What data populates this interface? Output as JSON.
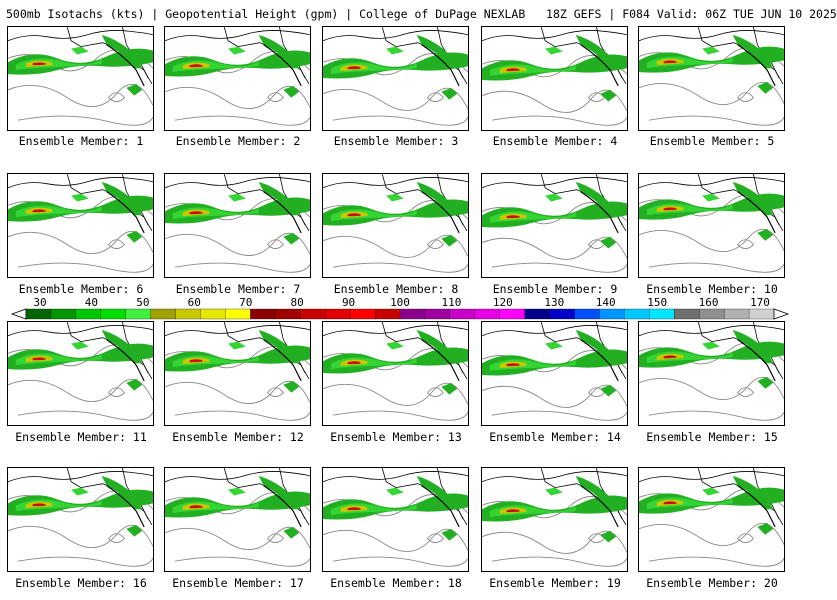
{
  "title": "500mb Isotachs (kts) | Geopotential Height (gpm) | College of DuPage NEXLAB   18Z GEFS | F084 Valid: 06Z TUE JUN 10 2025",
  "members": [
    "Ensemble Member: 1",
    "Ensemble Member: 2",
    "Ensemble Member: 3",
    "Ensemble Member: 4",
    "Ensemble Member: 5",
    "Ensemble Member: 6",
    "Ensemble Member: 7",
    "Ensemble Member: 8",
    "Ensemble Member: 9",
    "Ensemble Member: 10",
    "Ensemble Member: 11",
    "Ensemble Member: 12",
    "Ensemble Member: 13",
    "Ensemble Member: 14",
    "Ensemble Member: 15",
    "Ensemble Member: 16",
    "Ensemble Member: 17",
    "Ensemble Member: 18",
    "Ensemble Member: 19",
    "Ensemble Member: 20"
  ],
  "colorbar": {
    "labels": [
      "30",
      "40",
      "50",
      "60",
      "70",
      "80",
      "90",
      "100",
      "110",
      "120",
      "130",
      "140",
      "150",
      "160",
      "170"
    ],
    "colors": [
      "#006400",
      "#009600",
      "#00c800",
      "#00e000",
      "#40f040",
      "#a0a000",
      "#c8c800",
      "#e6e600",
      "#ffff00",
      "#8b0000",
      "#a00000",
      "#c80000",
      "#e00000",
      "#ff0000",
      "#c80000",
      "#8b008b",
      "#a000a0",
      "#c800c8",
      "#e600e6",
      "#ff00ff",
      "#00008b",
      "#0000c8",
      "#0050ff",
      "#0096ff",
      "#00c8ff",
      "#00e6ff",
      "#707070",
      "#909090",
      "#b0b0b0",
      "#d0d0d0"
    ]
  }
}
